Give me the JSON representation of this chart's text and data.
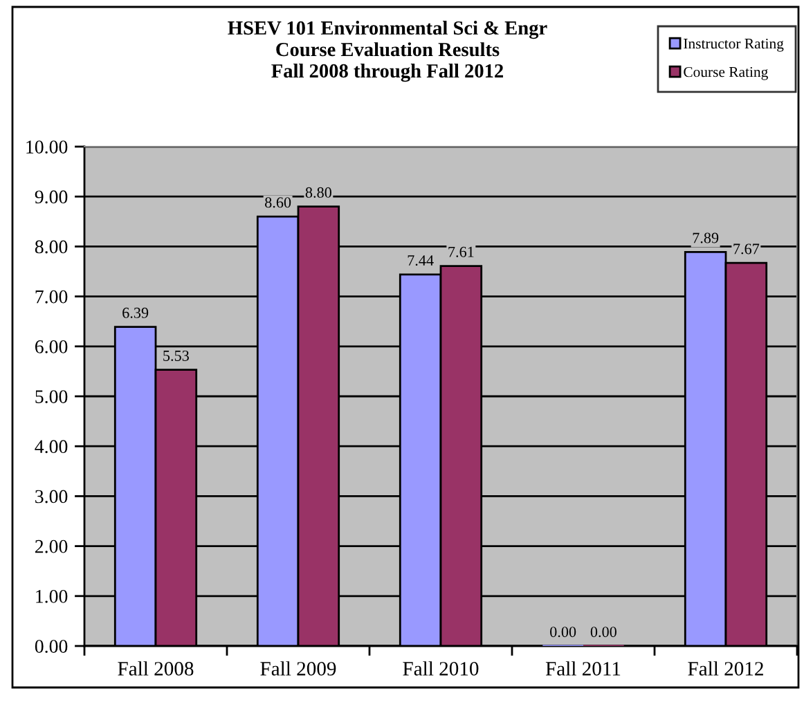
{
  "chart_data": {
    "type": "bar",
    "title": "HSEV 101 Environmental Sci & Engr\nCourse Evaluation Results\nFall 2008 through Fall 2012",
    "categories": [
      "Fall 2008",
      "Fall 2009",
      "Fall 2010",
      "Fall 2011",
      "Fall 2012"
    ],
    "series": [
      {
        "name": "Instructor Rating",
        "color": "#9999ff",
        "values": [
          6.39,
          8.6,
          7.44,
          0.0,
          7.89
        ],
        "value_labels": [
          "6.39",
          "8.60",
          "7.44",
          "0.00",
          "7.89"
        ]
      },
      {
        "name": "Course Rating",
        "color": "#993366",
        "values": [
          5.53,
          8.8,
          7.61,
          0.0,
          7.67
        ],
        "value_labels": [
          "5.53",
          "8.80",
          "7.61",
          "0.00",
          "7.67"
        ]
      }
    ],
    "ylim": [
      0,
      10
    ],
    "yticks": [
      {
        "value": 0,
        "label": "0.00"
      },
      {
        "value": 1,
        "label": "1.00"
      },
      {
        "value": 2,
        "label": "2.00"
      },
      {
        "value": 3,
        "label": "3.00"
      },
      {
        "value": 4,
        "label": "4.00"
      },
      {
        "value": 5,
        "label": "5.00"
      },
      {
        "value": 6,
        "label": "6.00"
      },
      {
        "value": 7,
        "label": "7.00"
      },
      {
        "value": 8,
        "label": "8.00"
      },
      {
        "value": 9,
        "label": "9.00"
      },
      {
        "value": 10,
        "label": "10.00"
      }
    ],
    "grid": "y",
    "legend": "top right"
  }
}
